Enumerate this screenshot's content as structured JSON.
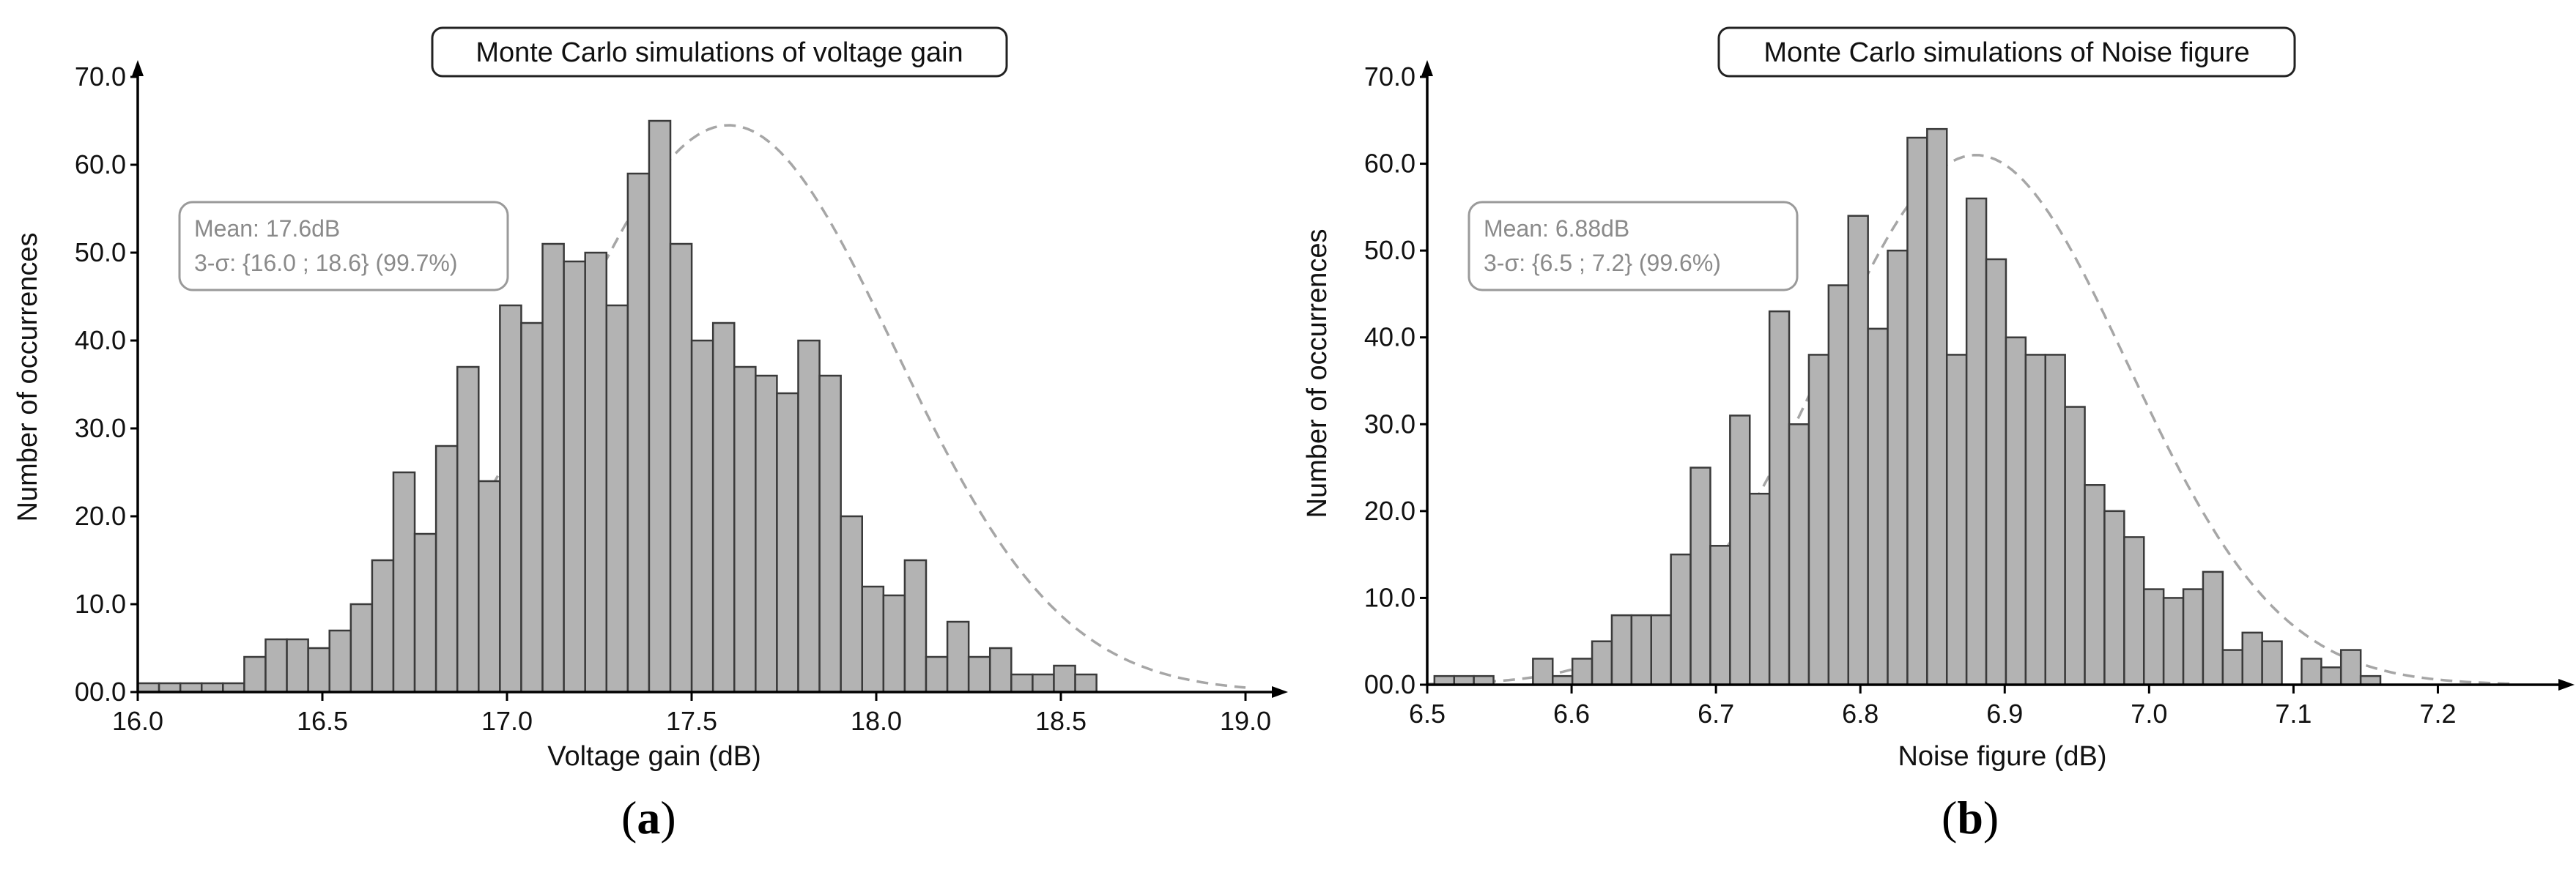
{
  "chart_data": [
    {
      "type": "bar",
      "title": "Monte Carlo simulations of voltage gain",
      "xlabel": "Voltage gain (dB)",
      "ylabel": "Number of occurrences",
      "xlim": [
        16.0,
        19.0
      ],
      "ylim": [
        0,
        70
      ],
      "xticks": [
        "16.0",
        "16.5",
        "17.0",
        "17.5",
        "18.0",
        "18.5",
        "19.0"
      ],
      "yticks": [
        "00.0",
        "10.0",
        "20.0",
        "30.0",
        "40.0",
        "50.0",
        "60.0",
        "70.0"
      ],
      "bin_start": 16.0,
      "bin_width": 0.0577,
      "values": [
        1,
        1,
        1,
        1,
        1,
        4,
        6,
        6,
        5,
        7,
        10,
        15,
        25,
        18,
        28,
        37,
        24,
        44,
        42,
        51,
        49,
        50,
        44,
        59,
        65,
        51,
        40,
        42,
        37,
        36,
        34,
        40,
        36,
        20,
        12,
        11,
        15,
        4,
        8,
        4,
        5,
        2,
        2,
        3,
        2
      ],
      "fit": {
        "mean": 17.6,
        "sigma": 0.45,
        "peak": 64.5
      },
      "annotation": [
        "Mean: 17.6dB",
        "3-σ: {16.0 ; 18.6} (99.7%)"
      ],
      "caption": "a",
      "grid": false
    },
    {
      "type": "bar",
      "title": "Monte Carlo simulations of Noise figure",
      "xlabel": "Noise figure (dB)",
      "ylabel": "Number of occurrences",
      "xlim": [
        6.5,
        7.25
      ],
      "ylim": [
        0,
        70
      ],
      "xticks": [
        "6.5",
        "6.6",
        "6.7",
        "6.8",
        "6.9",
        "7.0",
        "7.1",
        "7.2"
      ],
      "yticks": [
        "00.0",
        "10.0",
        "20.0",
        "30.0",
        "40.0",
        "50.0",
        "60.0",
        "70.0"
      ],
      "bin_start": 6.505,
      "bin_width": 0.01365,
      "values": [
        1,
        1,
        1,
        0,
        0,
        3,
        1,
        3,
        5,
        8,
        8,
        8,
        15,
        25,
        16,
        31,
        22,
        43,
        30,
        38,
        46,
        54,
        41,
        50,
        63,
        64,
        38,
        56,
        49,
        40,
        38,
        38,
        32,
        23,
        20,
        17,
        11,
        10,
        11,
        13,
        4,
        6,
        5,
        0,
        3,
        2,
        4,
        1
      ],
      "fit": {
        "mean": 6.88,
        "sigma": 0.105,
        "peak": 61
      },
      "annotation": [
        "Mean: 6.88dB",
        "3-σ: {6.5 ; 7.2} (99.6%)"
      ],
      "caption": "b",
      "grid": false
    }
  ]
}
